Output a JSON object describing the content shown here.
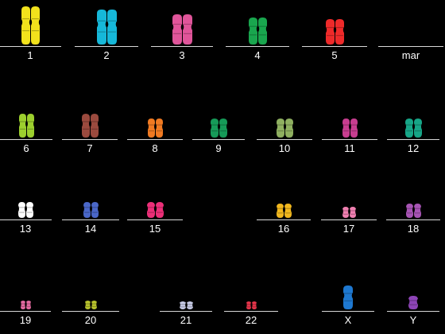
{
  "figure": "karyotype",
  "chromosomes": [
    {
      "label": "1",
      "color": "#f2e21c"
    },
    {
      "label": "2",
      "color": "#16b8d9"
    },
    {
      "label": "3",
      "color": "#e0559a"
    },
    {
      "label": "4",
      "color": "#19a64e"
    },
    {
      "label": "5",
      "color": "#ee2a2a"
    },
    {
      "label": "mar",
      "color": null
    },
    {
      "label": "6",
      "color": "#9ccf2e"
    },
    {
      "label": "7",
      "color": "#9b4a3e"
    },
    {
      "label": "8",
      "color": "#f07a22"
    },
    {
      "label": "9",
      "color": "#169a58"
    },
    {
      "label": "10",
      "color": "#8fb060"
    },
    {
      "label": "11",
      "color": "#c73d8f"
    },
    {
      "label": "12",
      "color": "#17a688"
    },
    {
      "label": "13",
      "color": "#ffffff"
    },
    {
      "label": "14",
      "color": "#4a67c8"
    },
    {
      "label": "15",
      "color": "#ec2f78"
    },
    {
      "label": "16",
      "color": "#f2b81e"
    },
    {
      "label": "17",
      "color": "#ef7fb0"
    },
    {
      "label": "18",
      "color": "#a754b4"
    },
    {
      "label": "19",
      "color": "#e46aa0"
    },
    {
      "label": "20",
      "color": "#b8c22c"
    },
    {
      "label": "21",
      "color": "#c7cbe6"
    },
    {
      "label": "22",
      "color": "#e6354a"
    },
    {
      "label": "X",
      "color": "#1e78d0"
    },
    {
      "label": "Y",
      "color": "#8d44b6"
    }
  ]
}
